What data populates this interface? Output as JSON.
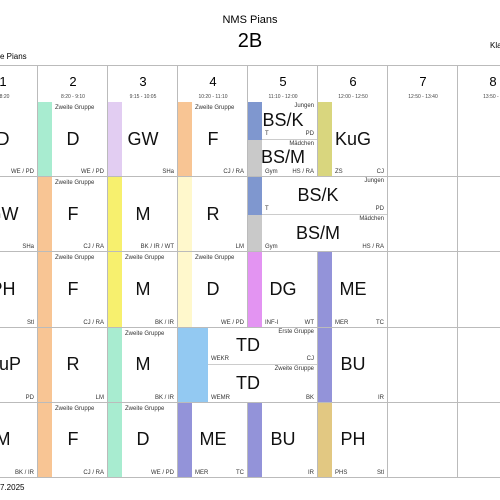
{
  "header": {
    "school": "NMS Pians",
    "class": "2B",
    "left_text": "e Pians",
    "right_text": "Kla"
  },
  "periods": [
    {
      "number": "1",
      "time": "- 8:20"
    },
    {
      "number": "2",
      "time": "8:20 - 9:10"
    },
    {
      "number": "3",
      "time": "9:15 - 10:05"
    },
    {
      "number": "4",
      "time": "10:20 - 11:10"
    },
    {
      "number": "5",
      "time": "11:10 - 12:00"
    },
    {
      "number": "6",
      "time": "12:00 - 12:50"
    },
    {
      "number": "7",
      "time": "12:50 - 13:40"
    },
    {
      "number": "8",
      "time": "13:50 - 1"
    }
  ],
  "rows": [
    [
      {
        "col": 1,
        "span": 1,
        "parts": [
          {
            "subject": "D",
            "teacher": "WE / PD"
          }
        ]
      },
      {
        "col": 2,
        "span": 1,
        "parts": [
          {
            "color": "#a8ecd0",
            "label": "Zweite Gruppe",
            "subject": "D",
            "teacher": "WE / PD"
          }
        ]
      },
      {
        "col": 3,
        "span": 1,
        "parts": [
          {
            "color": "#e2cdf2",
            "subject": "GW",
            "teacher": "SHa"
          }
        ]
      },
      {
        "col": 4,
        "span": 1,
        "parts": [
          {
            "color": "#f8c594",
            "label": "Zweite Gruppe",
            "subject": "F",
            "teacher": "CJ / RA"
          }
        ]
      },
      {
        "col": 5,
        "span": 1,
        "parts": [
          {
            "color": "#7f97cf",
            "label": "Jungen",
            "subject": "BS/K",
            "room": "T",
            "teacher": "PD"
          },
          {
            "color": "#c9c9c9",
            "label": "Mädchen",
            "subject": "BS/M",
            "room": "Gym",
            "teacher": "HS / RA"
          }
        ]
      },
      {
        "col": 6,
        "span": 1,
        "parts": [
          {
            "color": "#d9d67e",
            "subject": "KuG",
            "room": "ZS",
            "teacher": "CJ"
          }
        ]
      }
    ],
    [
      {
        "col": 1,
        "span": 1,
        "parts": [
          {
            "subject": "GW",
            "teacher": "SHa"
          }
        ]
      },
      {
        "col": 2,
        "span": 1,
        "parts": [
          {
            "color": "#f8c594",
            "label": "Zweite Gruppe",
            "subject": "F",
            "teacher": "CJ / RA"
          }
        ]
      },
      {
        "col": 3,
        "span": 1,
        "parts": [
          {
            "color": "#f7f06e",
            "subject": "M",
            "teacher": "BK / IR / WT"
          }
        ]
      },
      {
        "col": 4,
        "span": 1,
        "parts": [
          {
            "color": "#fff8cc",
            "subject": "R",
            "teacher": "LM"
          }
        ]
      },
      {
        "col": 5,
        "span": 2,
        "parts": [
          {
            "color": "#7f97cf",
            "label": "Jungen",
            "subject": "BS/K",
            "room": "T",
            "teacher": "PD"
          },
          {
            "color": "#c9c9c9",
            "label": "Mädchen",
            "subject": "BS/M",
            "room": "Gym",
            "teacher": "HS / RA"
          }
        ]
      }
    ],
    [
      {
        "col": 1,
        "span": 1,
        "parts": [
          {
            "subject": "PH",
            "teacher": "Stl"
          }
        ]
      },
      {
        "col": 2,
        "span": 1,
        "parts": [
          {
            "color": "#f8c594",
            "label": "Zweite Gruppe",
            "subject": "F",
            "teacher": "CJ / RA"
          }
        ]
      },
      {
        "col": 3,
        "span": 1,
        "parts": [
          {
            "color": "#f7f06e",
            "label": "Zweite Gruppe",
            "subject": "M",
            "teacher": "BK / IR"
          }
        ]
      },
      {
        "col": 4,
        "span": 1,
        "parts": [
          {
            "color": "#fff8cc",
            "label": "Zweite Gruppe",
            "subject": "D",
            "teacher": "WE / PD"
          }
        ]
      },
      {
        "col": 5,
        "span": 1,
        "parts": [
          {
            "color": "#e394f2",
            "subject": "DG",
            "room": "INF-I",
            "teacher": "WT"
          }
        ]
      },
      {
        "col": 6,
        "span": 1,
        "parts": [
          {
            "color": "#9393d9",
            "subject": "ME",
            "room": "MER",
            "teacher": "TC"
          }
        ]
      }
    ],
    [
      {
        "col": 1,
        "span": 1,
        "parts": [
          {
            "subject": "GuP",
            "teacher": "PD"
          }
        ]
      },
      {
        "col": 2,
        "span": 1,
        "parts": [
          {
            "color": "#f8c594",
            "subject": "R",
            "teacher": "LM"
          }
        ]
      },
      {
        "col": 3,
        "span": 1,
        "parts": [
          {
            "color": "#a8ecd0",
            "label": "Zweite Gruppe",
            "subject": "M",
            "teacher": "BK / IR"
          }
        ]
      },
      {
        "col": 4,
        "span": 2,
        "parts": [
          {
            "color": "#93c9f2",
            "label": "Erste Gruppe",
            "subject": "TD",
            "room": "WEKR",
            "teacher": "CJ"
          },
          {
            "color": "#93c9f2",
            "label": "Zweite Gruppe",
            "subject": "TD",
            "room": "WEMR",
            "teacher": "BK"
          }
        ]
      },
      {
        "col": 6,
        "span": 1,
        "parts": [
          {
            "color": "#9393d9",
            "subject": "BU",
            "teacher": "IR"
          }
        ]
      }
    ],
    [
      {
        "col": 1,
        "span": 1,
        "parts": [
          {
            "subject": "M",
            "teacher": "BK / IR"
          }
        ]
      },
      {
        "col": 2,
        "span": 1,
        "parts": [
          {
            "color": "#f8c594",
            "label": "Zweite Gruppe",
            "subject": "F",
            "teacher": "CJ / RA"
          }
        ]
      },
      {
        "col": 3,
        "span": 1,
        "parts": [
          {
            "color": "#a8ecd0",
            "label": "Zweite Gruppe",
            "subject": "D",
            "teacher": "WE / PD"
          }
        ]
      },
      {
        "col": 4,
        "span": 1,
        "parts": [
          {
            "color": "#9393d9",
            "subject": "ME",
            "room": "MER",
            "teacher": "TC"
          }
        ]
      },
      {
        "col": 5,
        "span": 1,
        "parts": [
          {
            "color": "#9393d9",
            "subject": "BU",
            "teacher": "IR"
          }
        ]
      },
      {
        "col": 6,
        "span": 1,
        "parts": [
          {
            "color": "#e2c882",
            "subject": "PH",
            "room": "PHS",
            "teacher": "Stl"
          }
        ]
      }
    ]
  ],
  "footer": "7.2025"
}
